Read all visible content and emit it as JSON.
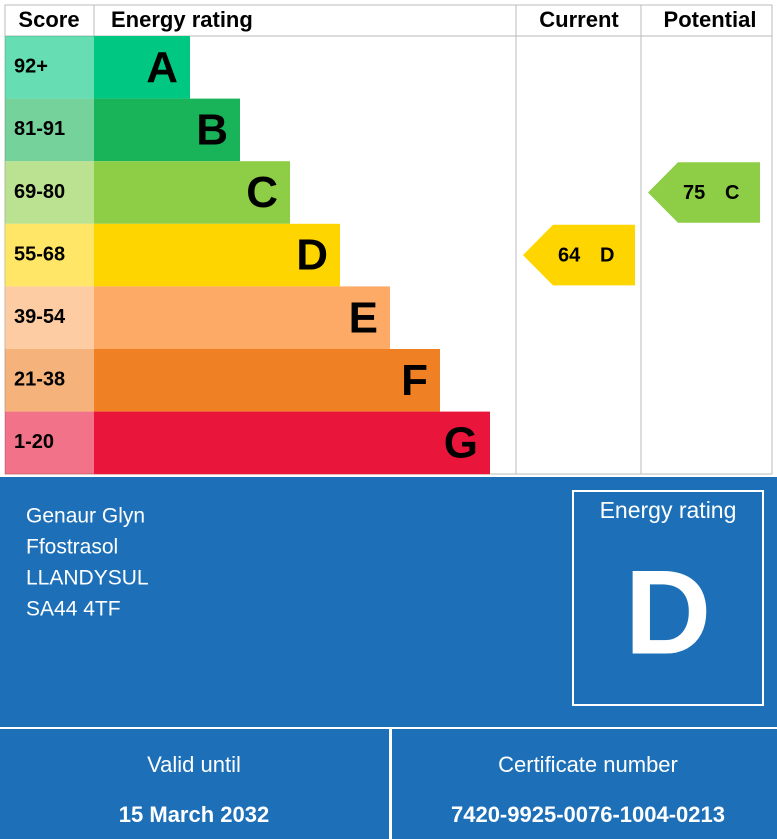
{
  "header": {
    "score": "Score",
    "energy_rating": "Energy rating",
    "current": "Current",
    "potential": "Potential"
  },
  "bands": [
    {
      "score": "92+",
      "letter": "A",
      "color": "#00c781"
    },
    {
      "score": "81-91",
      "letter": "B",
      "color": "#19b459"
    },
    {
      "score": "69-80",
      "letter": "C",
      "color": "#8dce46"
    },
    {
      "score": "55-68",
      "letter": "D",
      "color": "#ffd500"
    },
    {
      "score": "39-54",
      "letter": "E",
      "color": "#fcaa65"
    },
    {
      "score": "21-38",
      "letter": "F",
      "color": "#ef8023"
    },
    {
      "score": "1-20",
      "letter": "G",
      "color": "#e9153b"
    }
  ],
  "current": {
    "score": 64,
    "letter": "D"
  },
  "potential": {
    "score": 75,
    "letter": "C"
  },
  "address": [
    "Genaur Glyn",
    "Ffostrasol",
    "LLANDYSUL",
    "SA44 4TF"
  ],
  "rating_box": {
    "label": "Energy rating",
    "letter": "D"
  },
  "valid_until": {
    "label": "Valid until",
    "value": "15 March 2032"
  },
  "certificate": {
    "label": "Certificate number",
    "value": "7420-9925-0076-1004-0213"
  }
}
